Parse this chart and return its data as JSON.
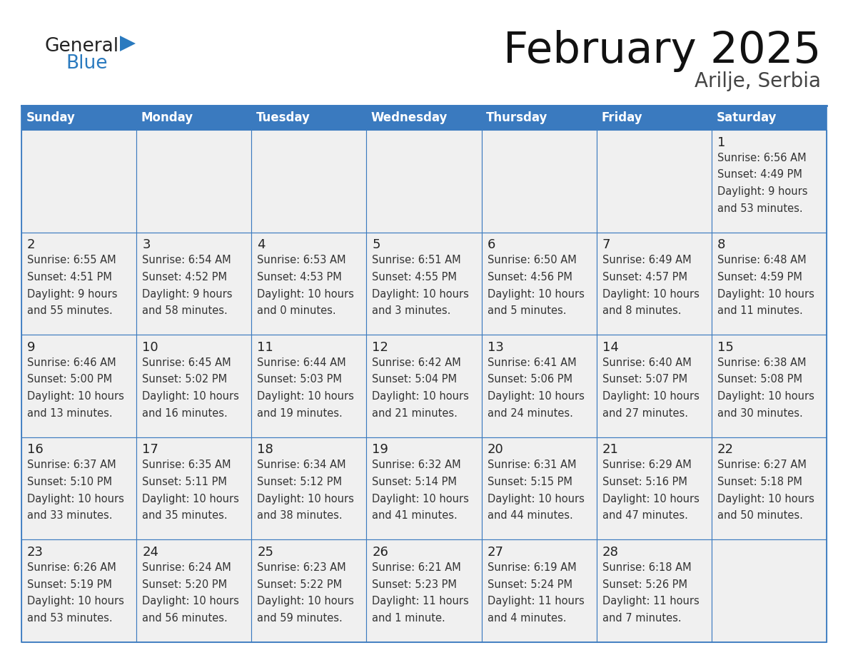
{
  "title": "February 2025",
  "subtitle": "Arilje, Serbia",
  "header_bg": "#3a7abf",
  "header_text": "#ffffff",
  "days_of_week": [
    "Sunday",
    "Monday",
    "Tuesday",
    "Wednesday",
    "Thursday",
    "Friday",
    "Saturday"
  ],
  "cell_bg": "#f0f0f0",
  "cell_bg_white": "#ffffff",
  "cell_border": "#3a7abf",
  "day_number_color": "#222222",
  "info_text_color": "#333333",
  "title_color": "#111111",
  "subtitle_color": "#444444",
  "logo_dark": "#222222",
  "logo_blue": "#2a7abf",
  "calendar_data": [
    [
      null,
      null,
      null,
      null,
      null,
      null,
      {
        "day": "1",
        "sunrise": "6:56 AM",
        "sunset": "4:49 PM",
        "daylight_line1": "9 hours",
        "daylight_line2": "and 53 minutes."
      }
    ],
    [
      {
        "day": "2",
        "sunrise": "6:55 AM",
        "sunset": "4:51 PM",
        "daylight_line1": "9 hours",
        "daylight_line2": "and 55 minutes."
      },
      {
        "day": "3",
        "sunrise": "6:54 AM",
        "sunset": "4:52 PM",
        "daylight_line1": "9 hours",
        "daylight_line2": "and 58 minutes."
      },
      {
        "day": "4",
        "sunrise": "6:53 AM",
        "sunset": "4:53 PM",
        "daylight_line1": "10 hours",
        "daylight_line2": "and 0 minutes."
      },
      {
        "day": "5",
        "sunrise": "6:51 AM",
        "sunset": "4:55 PM",
        "daylight_line1": "10 hours",
        "daylight_line2": "and 3 minutes."
      },
      {
        "day": "6",
        "sunrise": "6:50 AM",
        "sunset": "4:56 PM",
        "daylight_line1": "10 hours",
        "daylight_line2": "and 5 minutes."
      },
      {
        "day": "7",
        "sunrise": "6:49 AM",
        "sunset": "4:57 PM",
        "daylight_line1": "10 hours",
        "daylight_line2": "and 8 minutes."
      },
      {
        "day": "8",
        "sunrise": "6:48 AM",
        "sunset": "4:59 PM",
        "daylight_line1": "10 hours",
        "daylight_line2": "and 11 minutes."
      }
    ],
    [
      {
        "day": "9",
        "sunrise": "6:46 AM",
        "sunset": "5:00 PM",
        "daylight_line1": "10 hours",
        "daylight_line2": "and 13 minutes."
      },
      {
        "day": "10",
        "sunrise": "6:45 AM",
        "sunset": "5:02 PM",
        "daylight_line1": "10 hours",
        "daylight_line2": "and 16 minutes."
      },
      {
        "day": "11",
        "sunrise": "6:44 AM",
        "sunset": "5:03 PM",
        "daylight_line1": "10 hours",
        "daylight_line2": "and 19 minutes."
      },
      {
        "day": "12",
        "sunrise": "6:42 AM",
        "sunset": "5:04 PM",
        "daylight_line1": "10 hours",
        "daylight_line2": "and 21 minutes."
      },
      {
        "day": "13",
        "sunrise": "6:41 AM",
        "sunset": "5:06 PM",
        "daylight_line1": "10 hours",
        "daylight_line2": "and 24 minutes."
      },
      {
        "day": "14",
        "sunrise": "6:40 AM",
        "sunset": "5:07 PM",
        "daylight_line1": "10 hours",
        "daylight_line2": "and 27 minutes."
      },
      {
        "day": "15",
        "sunrise": "6:38 AM",
        "sunset": "5:08 PM",
        "daylight_line1": "10 hours",
        "daylight_line2": "and 30 minutes."
      }
    ],
    [
      {
        "day": "16",
        "sunrise": "6:37 AM",
        "sunset": "5:10 PM",
        "daylight_line1": "10 hours",
        "daylight_line2": "and 33 minutes."
      },
      {
        "day": "17",
        "sunrise": "6:35 AM",
        "sunset": "5:11 PM",
        "daylight_line1": "10 hours",
        "daylight_line2": "and 35 minutes."
      },
      {
        "day": "18",
        "sunrise": "6:34 AM",
        "sunset": "5:12 PM",
        "daylight_line1": "10 hours",
        "daylight_line2": "and 38 minutes."
      },
      {
        "day": "19",
        "sunrise": "6:32 AM",
        "sunset": "5:14 PM",
        "daylight_line1": "10 hours",
        "daylight_line2": "and 41 minutes."
      },
      {
        "day": "20",
        "sunrise": "6:31 AM",
        "sunset": "5:15 PM",
        "daylight_line1": "10 hours",
        "daylight_line2": "and 44 minutes."
      },
      {
        "day": "21",
        "sunrise": "6:29 AM",
        "sunset": "5:16 PM",
        "daylight_line1": "10 hours",
        "daylight_line2": "and 47 minutes."
      },
      {
        "day": "22",
        "sunrise": "6:27 AM",
        "sunset": "5:18 PM",
        "daylight_line1": "10 hours",
        "daylight_line2": "and 50 minutes."
      }
    ],
    [
      {
        "day": "23",
        "sunrise": "6:26 AM",
        "sunset": "5:19 PM",
        "daylight_line1": "10 hours",
        "daylight_line2": "and 53 minutes."
      },
      {
        "day": "24",
        "sunrise": "6:24 AM",
        "sunset": "5:20 PM",
        "daylight_line1": "10 hours",
        "daylight_line2": "and 56 minutes."
      },
      {
        "day": "25",
        "sunrise": "6:23 AM",
        "sunset": "5:22 PM",
        "daylight_line1": "10 hours",
        "daylight_line2": "and 59 minutes."
      },
      {
        "day": "26",
        "sunrise": "6:21 AM",
        "sunset": "5:23 PM",
        "daylight_line1": "11 hours",
        "daylight_line2": "and 1 minute."
      },
      {
        "day": "27",
        "sunrise": "6:19 AM",
        "sunset": "5:24 PM",
        "daylight_line1": "11 hours",
        "daylight_line2": "and 4 minutes."
      },
      {
        "day": "28",
        "sunrise": "6:18 AM",
        "sunset": "5:26 PM",
        "daylight_line1": "11 hours",
        "daylight_line2": "and 7 minutes."
      },
      null
    ]
  ]
}
